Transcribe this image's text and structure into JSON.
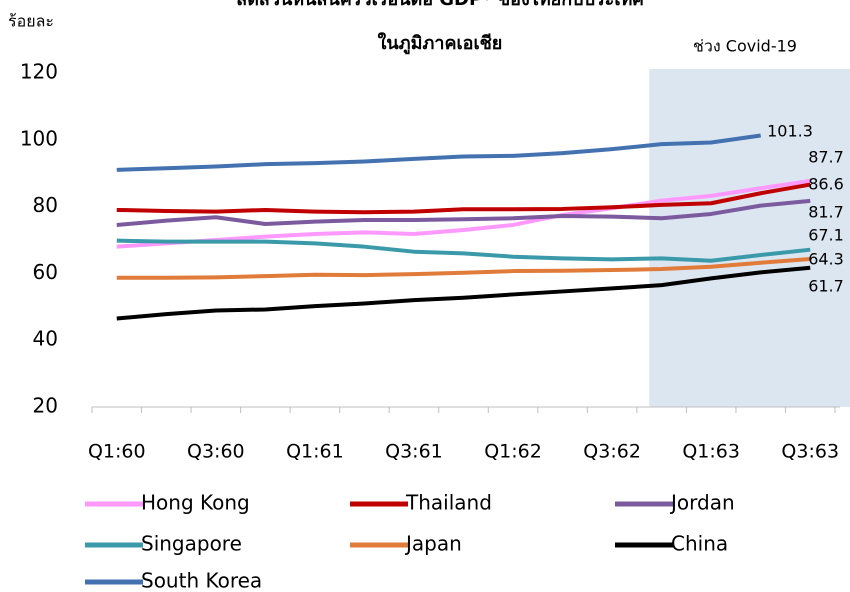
{
  "chart_data": {
    "type": "line",
    "title": [
      "สัดส่วนหนี้สินครัวเรือนต่อ GDP* ของไทยกับประเทศ",
      "ในภูมิภาคเอเชีย"
    ],
    "y_label": "ร้อยละ",
    "annotation": "ช่วง Covid-19",
    "categories": [
      "Q1:60",
      null,
      "Q3:60",
      null,
      "Q1:61",
      null,
      "Q3:61",
      null,
      "Q1:62",
      null,
      "Q3:62",
      null,
      "Q1:63",
      null,
      "Q3:63"
    ],
    "ylim": [
      20,
      120
    ],
    "yticks": [
      20,
      40,
      60,
      80,
      100,
      120
    ],
    "series": [
      {
        "name": "Hong Kong",
        "color": "#ff99ff",
        "values": [
          68,
          69,
          70,
          71,
          71.8,
          72.3,
          71.8,
          73,
          74.5,
          77.5,
          79.5,
          81.8,
          83.2,
          85.5,
          87.7
        ]
      },
      {
        "name": "Thailand",
        "color": "#c00000",
        "values": [
          79,
          78.7,
          78.5,
          79,
          78.5,
          78.3,
          78.5,
          79.2,
          79.2,
          79.3,
          79.8,
          80.5,
          81,
          84,
          86.6
        ]
      },
      {
        "name": "Jordan",
        "color": "#7b5a9e",
        "values": [
          74.5,
          75.8,
          76.8,
          74.8,
          75.5,
          76,
          76,
          76.2,
          76.5,
          77.2,
          77,
          76.5,
          77.8,
          80.3,
          81.7
        ]
      },
      {
        "name": "Singapore",
        "color": "#3a9aaa",
        "values": [
          69.8,
          69.5,
          69.5,
          69.5,
          69,
          68,
          66.5,
          66,
          65,
          64.5,
          64.2,
          64.5,
          63.8,
          65.5,
          67.1
        ]
      },
      {
        "name": "Japan",
        "color": "#e07b39",
        "values": [
          58.7,
          58.7,
          58.8,
          59.2,
          59.6,
          59.5,
          59.8,
          60.2,
          60.7,
          60.8,
          61,
          61.3,
          62,
          63.2,
          64.3
        ]
      },
      {
        "name": "China",
        "color": "#000000",
        "values": [
          46.5,
          47.8,
          48.9,
          49.2,
          50.2,
          51,
          52,
          52.7,
          53.7,
          54.6,
          55.5,
          56.5,
          58.5,
          60.3,
          61.7
        ]
      },
      {
        "name": "South Korea",
        "color": "#4472b0",
        "values": [
          91,
          91.5,
          92,
          92.7,
          93,
          93.5,
          94.3,
          95,
          95.2,
          96,
          97.2,
          98.7,
          99.2,
          101.3,
          null
        ]
      }
    ]
  }
}
